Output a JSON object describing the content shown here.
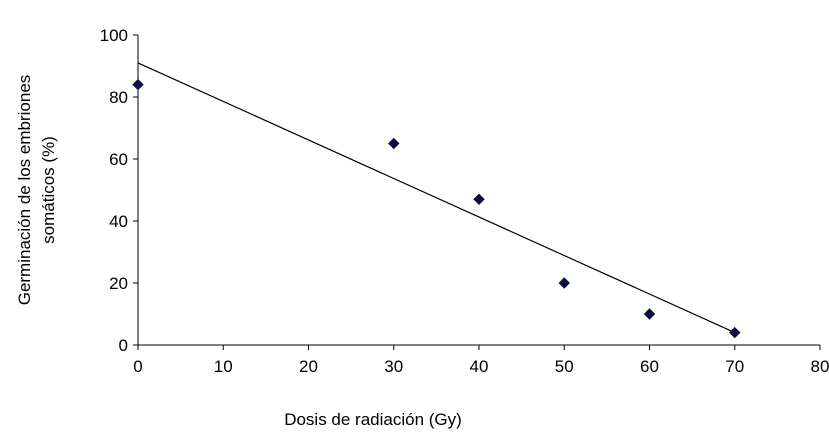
{
  "chart_data": {
    "type": "scatter",
    "title": "",
    "xlabel": "Dosis de radiación (Gy)",
    "ylabel_lines": [
      "Germinación de los embriones",
      "somáticos (%)"
    ],
    "xlim": [
      0,
      80
    ],
    "ylim": [
      0,
      100
    ],
    "x_ticks": [
      0,
      10,
      20,
      30,
      40,
      50,
      60,
      70,
      80
    ],
    "y_ticks": [
      0,
      20,
      40,
      60,
      80,
      100
    ],
    "grid": false,
    "legend": "none",
    "series": [
      {
        "x": [
          0,
          30,
          40,
          50,
          60,
          70
        ],
        "y": [
          84,
          65,
          47,
          20,
          10,
          4
        ]
      }
    ],
    "trendline": {
      "type": "linear",
      "x": [
        0,
        70
      ],
      "y": [
        91,
        4
      ]
    },
    "colors": {
      "marker": "#0b0b3b",
      "line": "#000000",
      "axis": "#000000"
    }
  }
}
